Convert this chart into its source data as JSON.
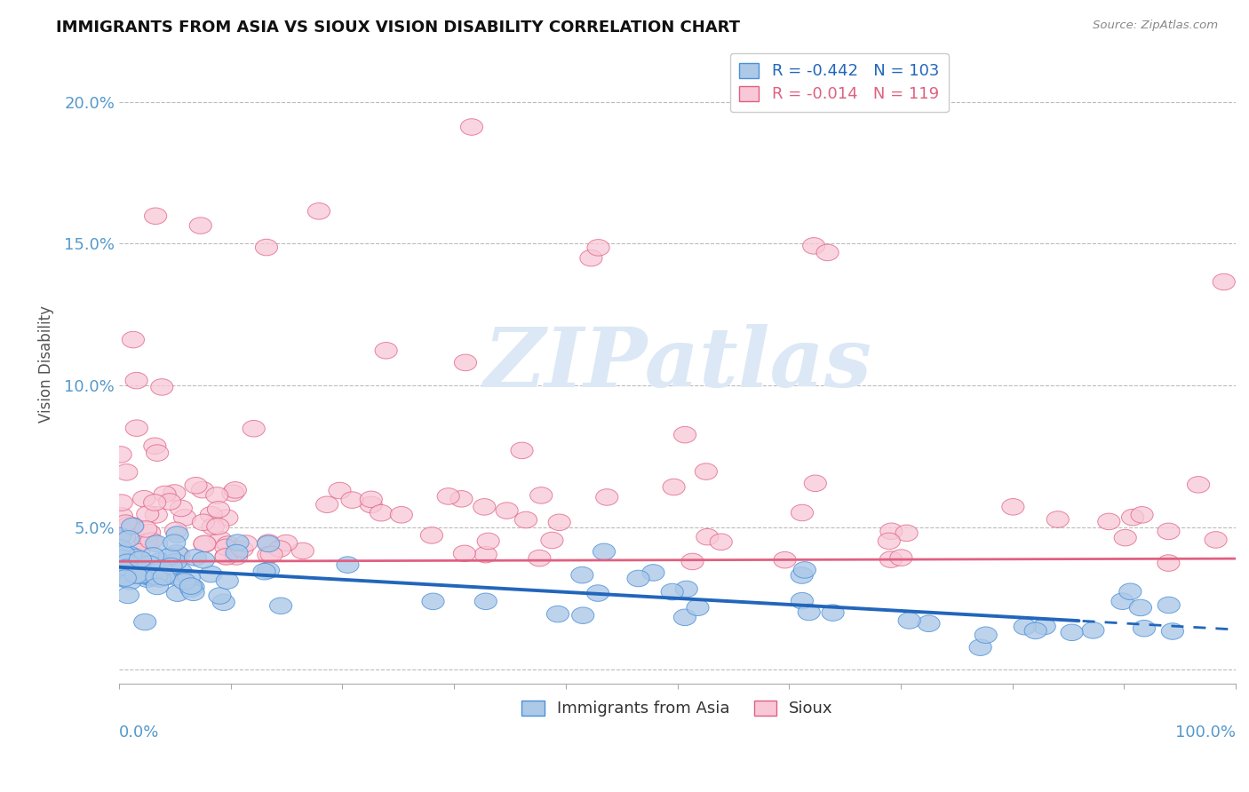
{
  "title": "IMMIGRANTS FROM ASIA VS SIOUX VISION DISABILITY CORRELATION CHART",
  "source": "Source: ZipAtlas.com",
  "ylabel": "Vision Disability",
  "x_min": 0.0,
  "x_max": 1.0,
  "y_min": -0.005,
  "y_max": 0.22,
  "yticks": [
    0.0,
    0.05,
    0.1,
    0.15,
    0.2
  ],
  "ytick_labels": [
    "",
    "5.0%",
    "10.0%",
    "15.0%",
    "20.0%"
  ],
  "series1_label": "Immigrants from Asia",
  "series1_R": "-0.442",
  "series1_N": "103",
  "series1_color": "#adc9e8",
  "series1_edge_color": "#4a90d9",
  "series1_line_color": "#2266bb",
  "series2_label": "Sioux",
  "series2_R": "-0.014",
  "series2_N": "119",
  "series2_color": "#f8c8d8",
  "series2_edge_color": "#e06080",
  "series2_line_color": "#e06080",
  "background_color": "#ffffff",
  "grid_color": "#bbbbbb",
  "title_color": "#111111",
  "axis_label_color": "#5599cc",
  "watermark_color": "#dce8f5"
}
